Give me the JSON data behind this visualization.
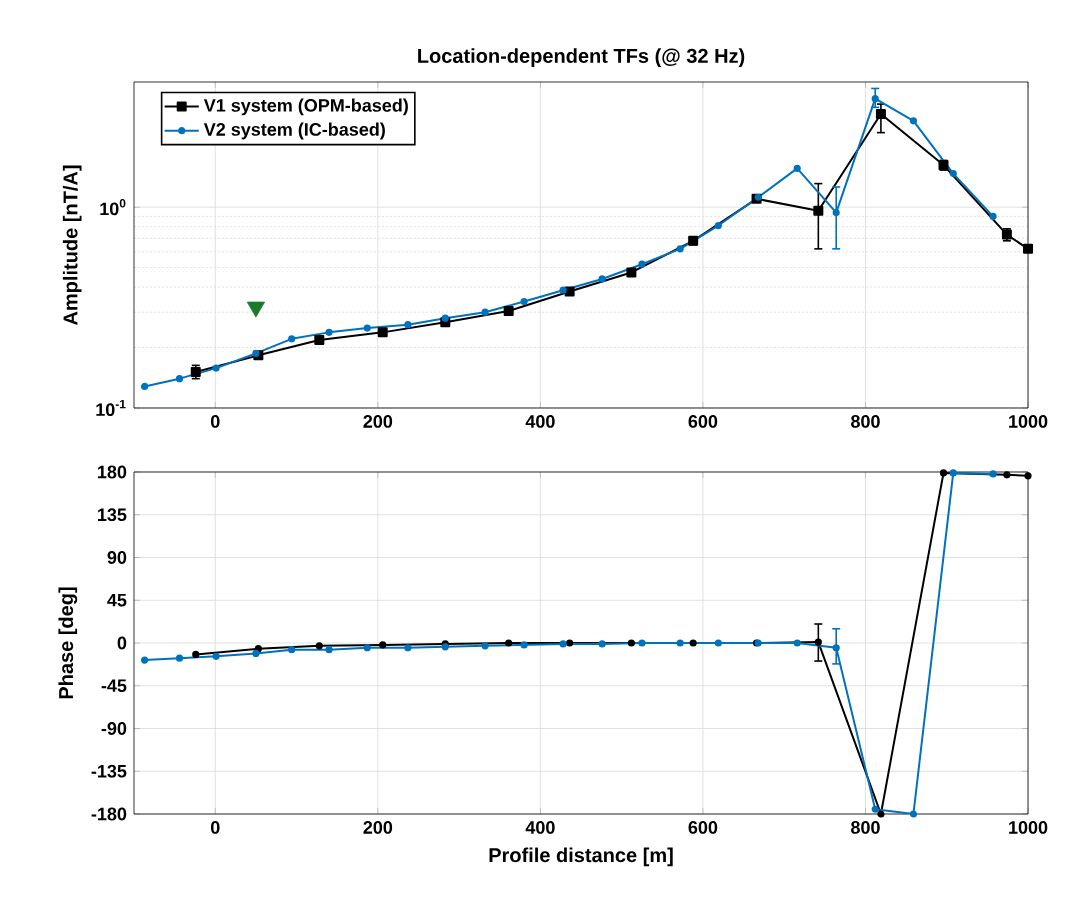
{
  "chart_data": [
    {
      "type": "line",
      "title": "Location-dependent TFs (@ 32 Hz)",
      "ylabel": "Amplitude [nT/A]",
      "log": "y",
      "grid": true,
      "legend": "top left",
      "marker": "circle",
      "xlim": [
        -100,
        1000
      ],
      "xticks": [
        0,
        200,
        400,
        600,
        800,
        1000
      ],
      "ylim": [
        0.1,
        4.2
      ],
      "yticks": [
        {
          "value": 0.1,
          "label": "10$^{-1}$"
        },
        {
          "value": 1,
          "label": "10$^{0}$"
        }
      ],
      "series": [
        {
          "name": "V1 system (OPM-based)",
          "color": "#000000",
          "marker": "square",
          "x": [
            -24,
            53,
            128,
            206,
            283,
            361,
            436,
            512,
            588,
            666,
            742,
            819,
            896,
            974,
            1000
          ],
          "values": [
            0.151,
            0.183,
            0.218,
            0.238,
            0.267,
            0.304,
            0.38,
            0.473,
            0.68,
            1.1,
            0.96,
            2.91,
            1.62,
            0.73,
            0.62
          ],
          "errors": [
            [
              0.14,
              0.163
            ],
            [
              0.177,
              0.189
            ],
            [
              0.21,
              0.226
            ],
            [
              0.23,
              0.246
            ],
            [
              0.259,
              0.275
            ],
            [
              0.295,
              0.313
            ],
            [
              0.368,
              0.392
            ],
            [
              0.458,
              0.488
            ],
            [
              0.65,
              0.71
            ],
            [
              1.06,
              1.14
            ],
            [
              0.62,
              1.31
            ],
            [
              2.35,
              3.26
            ],
            [
              1.53,
              1.71
            ],
            [
              0.68,
              0.78
            ],
            null
          ]
        },
        {
          "name": "V2 system (IC-based)",
          "color": "#0072bd",
          "x": [
            -87,
            -44,
            1,
            50,
            94,
            140,
            187,
            237,
            283,
            332,
            380,
            428,
            476,
            525,
            572,
            619,
            668,
            716,
            764,
            812,
            859,
            908,
            957
          ],
          "values": [
            0.128,
            0.14,
            0.158,
            0.187,
            0.221,
            0.238,
            0.25,
            0.26,
            0.28,
            0.3,
            0.339,
            0.386,
            0.439,
            0.52,
            0.62,
            0.81,
            1.12,
            1.56,
            0.94,
            3.47,
            2.69,
            1.47,
            0.9
          ],
          "errors": [
            null,
            null,
            null,
            null,
            null,
            null,
            null,
            null,
            null,
            null,
            null,
            null,
            null,
            null,
            null,
            null,
            null,
            null,
            [
              0.62,
              1.26
            ],
            [
              3.14,
              3.9
            ],
            null,
            null,
            null
          ]
        },
        {
          "type": "scatter",
          "marker": "triangle",
          "color": "#1a7a2a",
          "x": [
            50
          ],
          "values": [
            0.318
          ]
        }
      ]
    },
    {
      "type": "line",
      "xlabel": "Profile distance [m]",
      "ylabel": "Phase [deg]",
      "grid": true,
      "marker": "circle",
      "xlim": [
        -100,
        1000
      ],
      "xticks": [
        0,
        200,
        400,
        600,
        800,
        1000
      ],
      "ylim": [
        -180,
        180
      ],
      "yticks": [
        -180,
        -135,
        -90,
        -45,
        0,
        45,
        90,
        135,
        180
      ],
      "series": [
        {
          "color": "#000000",
          "x": [
            -24,
            53,
            128,
            206,
            283,
            361,
            436,
            512,
            588,
            666,
            742,
            819,
            896,
            974,
            1000
          ],
          "values": [
            -12,
            -6,
            -3,
            -2,
            -1,
            0,
            0,
            0,
            0,
            0,
            1,
            -180,
            179,
            177,
            176
          ],
          "errors": [
            null,
            null,
            null,
            null,
            null,
            null,
            null,
            null,
            null,
            null,
            [
              -19,
              20
            ],
            null,
            null,
            null,
            null
          ]
        },
        {
          "color": "#0072bd",
          "x": [
            -87,
            -44,
            1,
            50,
            94,
            140,
            187,
            237,
            283,
            332,
            380,
            428,
            476,
            525,
            572,
            619,
            668,
            716,
            764,
            812,
            859,
            908,
            957
          ],
          "values": [
            -18,
            -16,
            -14,
            -11,
            -7,
            -7,
            -5,
            -5,
            -4,
            -3,
            -2,
            -1,
            -1,
            0,
            0,
            0,
            0,
            0,
            -5,
            -175,
            -180,
            179,
            178
          ],
          "errors": [
            null,
            null,
            null,
            null,
            null,
            null,
            null,
            null,
            null,
            null,
            null,
            null,
            null,
            null,
            null,
            null,
            null,
            null,
            [
              -22,
              15
            ],
            null,
            null,
            null,
            null
          ]
        }
      ]
    }
  ]
}
